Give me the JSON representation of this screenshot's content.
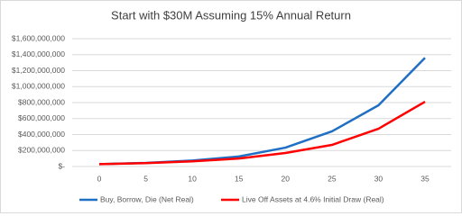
{
  "chart_data": {
    "type": "line",
    "title": "Start with $30M Assuming 15% Annual Return",
    "x": [
      0,
      5,
      10,
      15,
      20,
      25,
      30,
      35
    ],
    "series": [
      {
        "name": "Buy, Borrow, Die (Net Real)",
        "color": "#1f6fc5",
        "values": [
          30000000,
          45000000,
          75000000,
          125000000,
          236000000,
          440000000,
          766000000,
          1360000000
        ]
      },
      {
        "name": "Live Off Assets at 4.6% Initial Draw (Real)",
        "color": "#ff0000",
        "values": [
          30000000,
          42000000,
          65000000,
          100000000,
          169000000,
          270000000,
          473000000,
          811000000
        ]
      }
    ],
    "xlim": [
      0,
      35
    ],
    "xticks": [
      0,
      5,
      10,
      15,
      20,
      25,
      30,
      35
    ],
    "ylim": [
      0,
      1600000000
    ],
    "yticks": [
      {
        "value": 0,
        "label": "$-"
      },
      {
        "value": 200000000,
        "label": "$200,000,000"
      },
      {
        "value": 400000000,
        "label": "$400,000,000"
      },
      {
        "value": 600000000,
        "label": "$600,000,000"
      },
      {
        "value": 800000000,
        "label": "$800,000,000"
      },
      {
        "value": 1000000000,
        "label": "$1,000,000,000"
      },
      {
        "value": 1200000000,
        "label": "$1,200,000,000"
      },
      {
        "value": 1400000000,
        "label": "$1,400,000,000"
      },
      {
        "value": 1600000000,
        "label": "$1,600,000,000"
      }
    ],
    "grid": true,
    "legend": "bottom"
  }
}
